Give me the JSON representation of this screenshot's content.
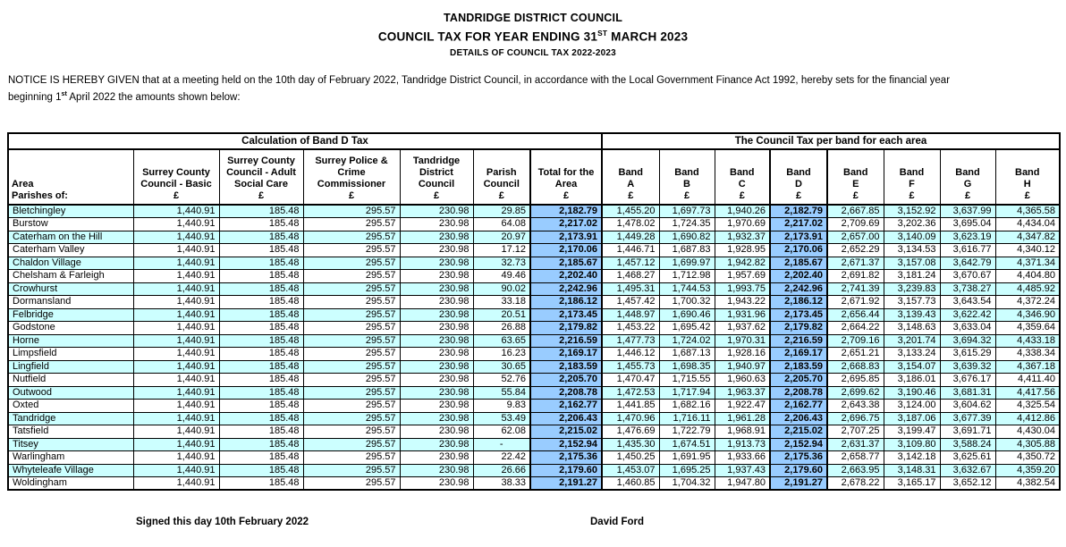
{
  "colors": {
    "stripe": "#CCFFFF",
    "highlight": "#99CCFF",
    "border": "#000000"
  },
  "header": {
    "title1": "TANDRIDGE DISTRICT COUNCIL",
    "title2_pre": "COUNCIL TAX FOR YEAR ENDING 31",
    "title2_sup": "ST",
    "title2_post": " MARCH 2023",
    "title3": "DETAILS OF COUNCIL TAX 2022-2023"
  },
  "notice": {
    "line1": "NOTICE IS HEREBY GIVEN that at a meeting held on the 10th day of February 2022, Tandridge District Council, in accordance with the Local Government Finance Act 1992, hereby sets for the financial year",
    "line2_pre": "beginning 1",
    "line2_sup": "st",
    "line2_post": " April 2022 the amounts shown below:"
  },
  "table": {
    "group_left": "Calculation of Band D Tax",
    "group_right": "The Council Tax per band for each area",
    "headers": {
      "area": "Area\nParishes of:",
      "scc_basic": "Surrey County\nCouncil - Basic\n£",
      "scc_asc": "Surrey County\nCouncil - Adult\nSocial Care\n£",
      "police": "Surrey Police &\nCrime\nCommissioner\n£",
      "tdc": "Tandridge\nDistrict\nCouncil\n£",
      "parish": "Parish\nCouncil\n£",
      "total": "Total for the\nArea\n£"
    },
    "band_word": "Band",
    "pound": "£",
    "bands": [
      "A",
      "B",
      "C",
      "D",
      "E",
      "F",
      "G",
      "H"
    ],
    "rows": [
      {
        "area": "Bletchingley",
        "scc_basic": "1,440.91",
        "scc_asc": "185.48",
        "police": "295.57",
        "tdc": "230.98",
        "parish": "29.85",
        "total": "2,182.79",
        "band_values": [
          "1,455.20",
          "1,697.73",
          "1,940.26",
          "2,182.79",
          "2,667.85",
          "3,152.92",
          "3,637.99",
          "4,365.58"
        ]
      },
      {
        "area": "Burstow",
        "scc_basic": "1,440.91",
        "scc_asc": "185.48",
        "police": "295.57",
        "tdc": "230.98",
        "parish": "64.08",
        "total": "2,217.02",
        "band_values": [
          "1,478.02",
          "1,724.35",
          "1,970.69",
          "2,217.02",
          "2,709.69",
          "3,202.36",
          "3,695.04",
          "4,434.04"
        ]
      },
      {
        "area": "Caterham on the Hill",
        "scc_basic": "1,440.91",
        "scc_asc": "185.48",
        "police": "295.57",
        "tdc": "230.98",
        "parish": "20.97",
        "total": "2,173.91",
        "band_values": [
          "1,449.28",
          "1,690.82",
          "1,932.37",
          "2,173.91",
          "2,657.00",
          "3,140.09",
          "3,623.19",
          "4,347.82"
        ]
      },
      {
        "area": "Caterham Valley",
        "scc_basic": "1,440.91",
        "scc_asc": "185.48",
        "police": "295.57",
        "tdc": "230.98",
        "parish": "17.12",
        "total": "2,170.06",
        "band_values": [
          "1,446.71",
          "1,687.83",
          "1,928.95",
          "2,170.06",
          "2,652.29",
          "3,134.53",
          "3,616.77",
          "4,340.12"
        ]
      },
      {
        "area": "Chaldon Village",
        "scc_basic": "1,440.91",
        "scc_asc": "185.48",
        "police": "295.57",
        "tdc": "230.98",
        "parish": "32.73",
        "total": "2,185.67",
        "band_values": [
          "1,457.12",
          "1,699.97",
          "1,942.82",
          "2,185.67",
          "2,671.37",
          "3,157.08",
          "3,642.79",
          "4,371.34"
        ]
      },
      {
        "area": "Chelsham & Farleigh",
        "scc_basic": "1,440.91",
        "scc_asc": "185.48",
        "police": "295.57",
        "tdc": "230.98",
        "parish": "49.46",
        "total": "2,202.40",
        "band_values": [
          "1,468.27",
          "1,712.98",
          "1,957.69",
          "2,202.40",
          "2,691.82",
          "3,181.24",
          "3,670.67",
          "4,404.80"
        ]
      },
      {
        "area": "Crowhurst",
        "scc_basic": "1,440.91",
        "scc_asc": "185.48",
        "police": "295.57",
        "tdc": "230.98",
        "parish": "90.02",
        "total": "2,242.96",
        "band_values": [
          "1,495.31",
          "1,744.53",
          "1,993.75",
          "2,242.96",
          "2,741.39",
          "3,239.83",
          "3,738.27",
          "4,485.92"
        ]
      },
      {
        "area": "Dormansland",
        "scc_basic": "1,440.91",
        "scc_asc": "185.48",
        "police": "295.57",
        "tdc": "230.98",
        "parish": "33.18",
        "total": "2,186.12",
        "band_values": [
          "1,457.42",
          "1,700.32",
          "1,943.22",
          "2,186.12",
          "2,671.92",
          "3,157.73",
          "3,643.54",
          "4,372.24"
        ]
      },
      {
        "area": "Felbridge",
        "scc_basic": "1,440.91",
        "scc_asc": "185.48",
        "police": "295.57",
        "tdc": "230.98",
        "parish": "20.51",
        "total": "2,173.45",
        "band_values": [
          "1,448.97",
          "1,690.46",
          "1,931.96",
          "2,173.45",
          "2,656.44",
          "3,139.43",
          "3,622.42",
          "4,346.90"
        ]
      },
      {
        "area": "Godstone",
        "scc_basic": "1,440.91",
        "scc_asc": "185.48",
        "police": "295.57",
        "tdc": "230.98",
        "parish": "26.88",
        "total": "2,179.82",
        "band_values": [
          "1,453.22",
          "1,695.42",
          "1,937.62",
          "2,179.82",
          "2,664.22",
          "3,148.63",
          "3,633.04",
          "4,359.64"
        ]
      },
      {
        "area": "Horne",
        "scc_basic": "1,440.91",
        "scc_asc": "185.48",
        "police": "295.57",
        "tdc": "230.98",
        "parish": "63.65",
        "total": "2,216.59",
        "band_values": [
          "1,477.73",
          "1,724.02",
          "1,970.31",
          "2,216.59",
          "2,709.16",
          "3,201.74",
          "3,694.32",
          "4,433.18"
        ]
      },
      {
        "area": "Limpsfield",
        "scc_basic": "1,440.91",
        "scc_asc": "185.48",
        "police": "295.57",
        "tdc": "230.98",
        "parish": "16.23",
        "total": "2,169.17",
        "band_values": [
          "1,446.12",
          "1,687.13",
          "1,928.16",
          "2,169.17",
          "2,651.21",
          "3,133.24",
          "3,615.29",
          "4,338.34"
        ]
      },
      {
        "area": "Lingfield",
        "scc_basic": "1,440.91",
        "scc_asc": "185.48",
        "police": "295.57",
        "tdc": "230.98",
        "parish": "30.65",
        "total": "2,183.59",
        "band_values": [
          "1,455.73",
          "1,698.35",
          "1,940.97",
          "2,183.59",
          "2,668.83",
          "3,154.07",
          "3,639.32",
          "4,367.18"
        ]
      },
      {
        "area": "Nutfield",
        "scc_basic": "1,440.91",
        "scc_asc": "185.48",
        "police": "295.57",
        "tdc": "230.98",
        "parish": "52.76",
        "total": "2,205.70",
        "band_values": [
          "1,470.47",
          "1,715.55",
          "1,960.63",
          "2,205.70",
          "2,695.85",
          "3,186.01",
          "3,676.17",
          "4,411.40"
        ]
      },
      {
        "area": "Outwood",
        "scc_basic": "1,440.91",
        "scc_asc": "185.48",
        "police": "295.57",
        "tdc": "230.98",
        "parish": "55.84",
        "total": "2,208.78",
        "band_values": [
          "1,472.53",
          "1,717.94",
          "1,963.37",
          "2,208.78",
          "2,699.62",
          "3,190.46",
          "3,681.31",
          "4,417.56"
        ]
      },
      {
        "area": "Oxted",
        "scc_basic": "1,440.91",
        "scc_asc": "185.48",
        "police": "295.57",
        "tdc": "230.98",
        "parish": "9.83",
        "total": "2,162.77",
        "band_values": [
          "1,441.85",
          "1,682.16",
          "1,922.47",
          "2,162.77",
          "2,643.38",
          "3,124.00",
          "3,604.62",
          "4,325.54"
        ]
      },
      {
        "area": "Tandridge",
        "scc_basic": "1,440.91",
        "scc_asc": "185.48",
        "police": "295.57",
        "tdc": "230.98",
        "parish": "53.49",
        "total": "2,206.43",
        "band_values": [
          "1,470.96",
          "1,716.11",
          "1,961.28",
          "2,206.43",
          "2,696.75",
          "3,187.06",
          "3,677.39",
          "4,412.86"
        ]
      },
      {
        "area": "Tatsfield",
        "scc_basic": "1,440.91",
        "scc_asc": "185.48",
        "police": "295.57",
        "tdc": "230.98",
        "parish": "62.08",
        "total": "2,215.02",
        "band_values": [
          "1,476.69",
          "1,722.79",
          "1,968.91",
          "2,215.02",
          "2,707.25",
          "3,199.47",
          "3,691.71",
          "4,430.04"
        ]
      },
      {
        "area": "Titsey",
        "scc_basic": "1,440.91",
        "scc_asc": "185.48",
        "police": "295.57",
        "tdc": "230.98",
        "parish": "-",
        "total": "2,152.94",
        "band_values": [
          "1,435.30",
          "1,674.51",
          "1,913.73",
          "2,152.94",
          "2,631.37",
          "3,109.80",
          "3,588.24",
          "4,305.88"
        ]
      },
      {
        "area": "Warlingham",
        "scc_basic": "1,440.91",
        "scc_asc": "185.48",
        "police": "295.57",
        "tdc": "230.98",
        "parish": "22.42",
        "total": "2,175.36",
        "band_values": [
          "1,450.25",
          "1,691.95",
          "1,933.66",
          "2,175.36",
          "2,658.77",
          "3,142.18",
          "3,625.61",
          "4,350.72"
        ]
      },
      {
        "area": "Whyteleafe Village",
        "scc_basic": "1,440.91",
        "scc_asc": "185.48",
        "police": "295.57",
        "tdc": "230.98",
        "parish": "26.66",
        "total": "2,179.60",
        "band_values": [
          "1,453.07",
          "1,695.25",
          "1,937.43",
          "2,179.60",
          "2,663.95",
          "3,148.31",
          "3,632.67",
          "4,359.20"
        ]
      },
      {
        "area": "Woldingham",
        "scc_basic": "1,440.91",
        "scc_asc": "185.48",
        "police": "295.57",
        "tdc": "230.98",
        "parish": "38.33",
        "total": "2,191.27",
        "band_values": [
          "1,460.85",
          "1,704.32",
          "1,947.80",
          "2,191.27",
          "2,678.22",
          "3,165.17",
          "3,652.12",
          "4,382.54"
        ]
      }
    ]
  },
  "footer": {
    "signed": "Signed this day 10th February 2022",
    "signatory": "David Ford"
  }
}
